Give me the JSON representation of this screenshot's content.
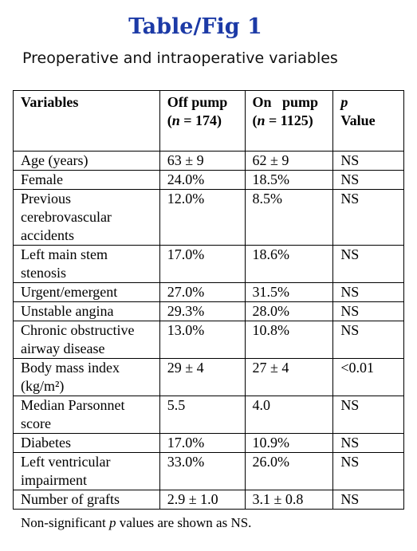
{
  "title": "Table/Fig 1",
  "subtitle": "Preoperative and intraoperative variables",
  "header": [
    [
      [
        "Variables"
      ]
    ],
    [
      [
        "Off pump"
      ],
      [
        "(",
        {
          "italic": "n"
        },
        " = 174)"
      ]
    ],
    [
      [
        "On   pump"
      ],
      [
        "(",
        {
          "italic": "n"
        },
        " = 1125)"
      ]
    ],
    [
      [
        {
          "italic": "p"
        }
      ],
      [
        "Value"
      ]
    ]
  ],
  "rows": [
    {
      "label": [
        "Age (years)"
      ],
      "values": [
        "63 ± 9",
        "62 ± 9",
        "NS"
      ]
    },
    {
      "label": [
        "Female"
      ],
      "values": [
        "24.0%",
        "18.5%",
        "NS"
      ]
    },
    {
      "label": [
        "Previous",
        "cerebrovascular",
        "accidents"
      ],
      "values": [
        "12.0%",
        "8.5%",
        "NS"
      ]
    },
    {
      "label": [
        "Left main stem",
        "stenosis"
      ],
      "values": [
        "17.0%",
        "18.6%",
        "NS"
      ]
    },
    {
      "label": [
        "Urgent/emergent"
      ],
      "values": [
        "27.0%",
        "31.5%",
        "NS"
      ]
    },
    {
      "label": [
        "Unstable angina"
      ],
      "values": [
        "29.3%",
        "28.0%",
        "NS"
      ]
    },
    {
      "label": [
        "Chronic obstructive",
        "airway disease"
      ],
      "values": [
        "13.0%",
        "10.8%",
        "NS"
      ]
    },
    {
      "label": [
        "Body mass index",
        "(kg/m²)"
      ],
      "values": [
        "29 ± 4",
        "27 ± 4",
        "<0.01"
      ]
    },
    {
      "label": [
        "Median Parsonnet",
        "score"
      ],
      "values": [
        "5.5",
        "4.0",
        "NS"
      ]
    },
    {
      "label": [
        "Diabetes"
      ],
      "values": [
        "17.0%",
        "10.9%",
        "NS"
      ]
    },
    {
      "label": [
        "Left ventricular",
        "impairment"
      ],
      "values": [
        "33.0%",
        "26.0%",
        "NS"
      ]
    },
    {
      "label": [
        "Number of grafts"
      ],
      "values": [
        "2.9 ± 1.0",
        "3.1 ± 0.8",
        "NS"
      ]
    }
  ],
  "footer": [
    "Non-significant ",
    {
      "italic": "p"
    },
    " values are shown as NS."
  ]
}
